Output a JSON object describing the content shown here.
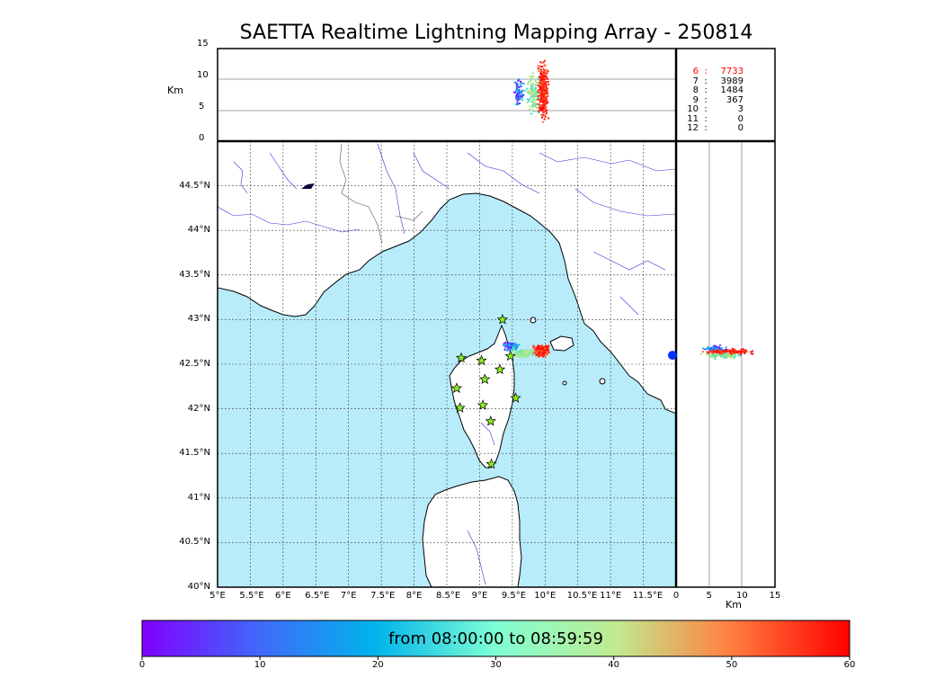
{
  "title": "SAETTA Realtime Lightning Mapping Array - 250814",
  "altitude_axis": {
    "label": "Km",
    "ticks": [
      "15",
      "10",
      "5",
      "0"
    ],
    "range": [
      0,
      15
    ]
  },
  "lon_axis": {
    "ticks": [
      "5°E",
      "5.5°E",
      "6°E",
      "6.5°E",
      "7°E",
      "7.5°E",
      "8°E",
      "8.5°E",
      "9°E",
      "9.5°E",
      "10°E",
      "10.5°E",
      "11°E",
      "11.5°E"
    ],
    "range": [
      5.0,
      12.0
    ]
  },
  "lat_axis": {
    "ticks": [
      "44.5°N",
      "44°N",
      "43.5°N",
      "43°N",
      "42.5°N",
      "42°N",
      "41.5°N",
      "41°N",
      "40.5°N",
      "40°N"
    ],
    "range": [
      40.0,
      45.0
    ]
  },
  "side_axis": {
    "label": "Km",
    "ticks": [
      "0",
      "5",
      "10",
      "15"
    ],
    "range": [
      0,
      15
    ]
  },
  "station_counts": [
    {
      "n": "6",
      "sep": ":",
      "count": "7733",
      "highlight": true
    },
    {
      "n": "7",
      "sep": ":",
      "count": "3989",
      "highlight": false
    },
    {
      "n": "8",
      "sep": ":",
      "count": "1484",
      "highlight": false
    },
    {
      "n": "9",
      "sep": ":",
      "count": "367",
      "highlight": false
    },
    {
      "n": "10",
      "sep": ":",
      "count": "3",
      "highlight": false
    },
    {
      "n": "11",
      "sep": ":",
      "count": "0",
      "highlight": false
    },
    {
      "n": "12",
      "sep": ":",
      "count": "0",
      "highlight": false
    }
  ],
  "stations": [
    {
      "lon": 9.35,
      "lat": 43.0
    },
    {
      "lon": 8.72,
      "lat": 42.57
    },
    {
      "lon": 9.03,
      "lat": 42.54
    },
    {
      "lon": 9.47,
      "lat": 42.59
    },
    {
      "lon": 9.31,
      "lat": 42.44
    },
    {
      "lon": 9.08,
      "lat": 42.33
    },
    {
      "lon": 8.65,
      "lat": 42.23
    },
    {
      "lon": 9.55,
      "lat": 42.12
    },
    {
      "lon": 8.7,
      "lat": 42.01
    },
    {
      "lon": 9.05,
      "lat": 42.04
    },
    {
      "lon": 9.17,
      "lat": 41.86
    },
    {
      "lon": 9.18,
      "lat": 41.38
    }
  ],
  "colorbar": {
    "caption": "from 08:00:00 to 08:59:59",
    "ticks": [
      "0",
      "10",
      "20",
      "30",
      "40",
      "50",
      "60"
    ],
    "range": [
      0,
      60
    ]
  },
  "colors": {
    "sea": "#b8ecfa",
    "land": "#ffffff",
    "coast": "#000000",
    "rivers": "#3333dd",
    "borders": "#555555",
    "station_fill": "#88ee22",
    "highlight_text": "#ff0000"
  }
}
